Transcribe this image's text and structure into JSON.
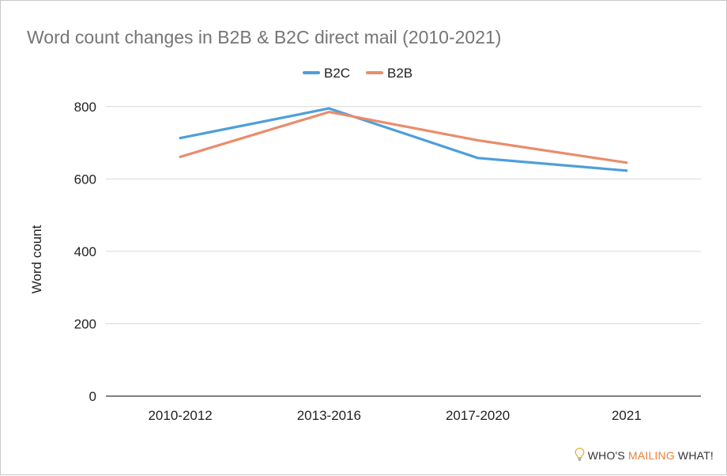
{
  "chart_data": {
    "type": "line",
    "title": "Word count changes in B2B & B2C direct mail (2010-2021)",
    "xlabel": "",
    "ylabel": "Word count",
    "categories": [
      "2010-2012",
      "2013-2016",
      "2017-2020",
      "2021"
    ],
    "ylim": [
      0,
      900
    ],
    "yticks": [
      "0",
      "200",
      "400",
      "600",
      "800"
    ],
    "grid": true,
    "legend_position": "top",
    "series": [
      {
        "name": "B2C",
        "color": "#4e9fda",
        "values": [
          713,
          795,
          658,
          623
        ]
      },
      {
        "name": "B2B",
        "color": "#ea8c6b",
        "values": [
          661,
          785,
          707,
          645
        ]
      }
    ]
  },
  "watermark": {
    "part1": "WHO'S",
    "part2": "MAILING",
    "part3": "WHAT!",
    "accent": "#e8833a"
  }
}
